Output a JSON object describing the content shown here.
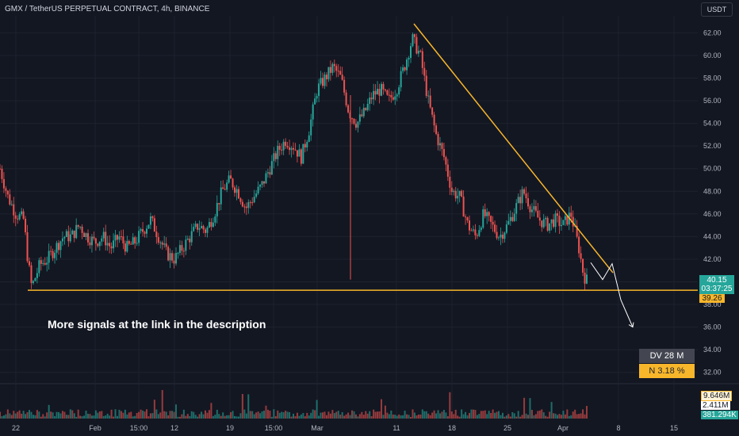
{
  "header": {
    "title": "GMX / TetherUS PERPETUAL CONTRACT, 4h, BINANCE",
    "currency": "USDT"
  },
  "price_labels": {
    "last_price": "40.15",
    "countdown": "03:37:25",
    "level": "39.26"
  },
  "annotation": "More signals at the link in the description",
  "indicator_boxes": {
    "dv": "DV 28 M",
    "n": "N 3.18 %"
  },
  "volume_labels": [
    "9.646M",
    "2.411M",
    "381.294K"
  ],
  "colors": {
    "background": "#131722",
    "up_candle": "#26a69a",
    "down_candle": "#ef5350",
    "trendline": "#f8b62b",
    "support": "#f8b62b",
    "projection": "#ffffff"
  },
  "chart_data": {
    "type": "candlestick",
    "title": "GMX / TetherUS PERPETUAL CONTRACT, 4h, BINANCE",
    "y_ticks": [
      "62.00",
      "60.00",
      "58.00",
      "56.00",
      "54.00",
      "52.00",
      "50.00",
      "48.00",
      "46.00",
      "44.00",
      "42.00",
      "40.00",
      "38.00",
      "36.00",
      "34.00",
      "32.00"
    ],
    "ylim": [
      31,
      63.5
    ],
    "x_ticks": [
      {
        "label": "22",
        "x": 0.0
      },
      {
        "label": "Feb",
        "x": 10.0
      },
      {
        "label": "15:00",
        "x": 15.5
      },
      {
        "label": "12",
        "x": 20.0
      },
      {
        "label": "19",
        "x": 27.0
      },
      {
        "label": "15:00",
        "x": 32.5
      },
      {
        "label": "Mar",
        "x": 38.0
      },
      {
        "label": "11",
        "x": 48.0
      },
      {
        "label": "18",
        "x": 55.0
      },
      {
        "label": "25",
        "x": 62.0
      },
      {
        "label": "Apr",
        "x": 69.0
      },
      {
        "label": "8",
        "x": 76.0
      },
      {
        "label": "15",
        "x": 83.0
      }
    ],
    "xlim": [
      -2,
      86
    ],
    "series": [
      {
        "x": -2,
        "y": 50.0
      },
      {
        "x": -1,
        "y": 47.5
      },
      {
        "x": 0,
        "y": 46.0
      },
      {
        "x": 1,
        "y": 45.5
      },
      {
        "x": 1.5,
        "y": 42.0
      },
      {
        "x": 2,
        "y": 39.5
      },
      {
        "x": 3,
        "y": 41.5
      },
      {
        "x": 4,
        "y": 42.0
      },
      {
        "x": 5,
        "y": 43.0
      },
      {
        "x": 6,
        "y": 44.0
      },
      {
        "x": 7,
        "y": 44.0
      },
      {
        "x": 8,
        "y": 45.0
      },
      {
        "x": 9,
        "y": 44.0
      },
      {
        "x": 10,
        "y": 43.5
      },
      {
        "x": 11,
        "y": 44.0
      },
      {
        "x": 12,
        "y": 43.0
      },
      {
        "x": 13,
        "y": 44.0
      },
      {
        "x": 14,
        "y": 43.0
      },
      {
        "x": 15,
        "y": 43.5
      },
      {
        "x": 16,
        "y": 44.5
      },
      {
        "x": 17,
        "y": 45.5
      },
      {
        "x": 18,
        "y": 44.0
      },
      {
        "x": 19,
        "y": 42.5
      },
      {
        "x": 20,
        "y": 42.0
      },
      {
        "x": 21,
        "y": 43.0
      },
      {
        "x": 22,
        "y": 44.0
      },
      {
        "x": 23,
        "y": 45.0
      },
      {
        "x": 24,
        "y": 44.5
      },
      {
        "x": 25,
        "y": 46.0
      },
      {
        "x": 26,
        "y": 48.0
      },
      {
        "x": 27,
        "y": 49.0
      },
      {
        "x": 28,
        "y": 48.0
      },
      {
        "x": 29,
        "y": 46.5
      },
      {
        "x": 30,
        "y": 47.5
      },
      {
        "x": 31,
        "y": 48.5
      },
      {
        "x": 32,
        "y": 50.0
      },
      {
        "x": 33,
        "y": 51.5
      },
      {
        "x": 34,
        "y": 52.5
      },
      {
        "x": 35,
        "y": 52.0
      },
      {
        "x": 36,
        "y": 51.0
      },
      {
        "x": 37,
        "y": 53.5
      },
      {
        "x": 38,
        "y": 57.0
      },
      {
        "x": 39,
        "y": 58.0
      },
      {
        "x": 40,
        "y": 59.0
      },
      {
        "x": 41,
        "y": 58.0
      },
      {
        "x": 42,
        "y": 55.0
      },
      {
        "x": 43,
        "y": 54.0
      },
      {
        "x": 44,
        "y": 55.0
      },
      {
        "x": 45,
        "y": 56.5
      },
      {
        "x": 46,
        "y": 57.0
      },
      {
        "x": 47,
        "y": 56.0
      },
      {
        "x": 48,
        "y": 57.0
      },
      {
        "x": 49,
        "y": 59.0
      },
      {
        "x": 50,
        "y": 61.5
      },
      {
        "x": 51,
        "y": 60.0
      },
      {
        "x": 52,
        "y": 56.0
      },
      {
        "x": 53,
        "y": 53.0
      },
      {
        "x": 54,
        "y": 51.0
      },
      {
        "x": 55,
        "y": 48.0
      },
      {
        "x": 56,
        "y": 47.5
      },
      {
        "x": 57,
        "y": 45.0
      },
      {
        "x": 58,
        "y": 44.0
      },
      {
        "x": 59,
        "y": 46.0
      },
      {
        "x": 60,
        "y": 45.0
      },
      {
        "x": 61,
        "y": 44.0
      },
      {
        "x": 62,
        "y": 45.0
      },
      {
        "x": 63,
        "y": 46.5
      },
      {
        "x": 64,
        "y": 48.0
      },
      {
        "x": 65,
        "y": 46.5
      },
      {
        "x": 66,
        "y": 45.5
      },
      {
        "x": 67,
        "y": 45.0
      },
      {
        "x": 68,
        "y": 45.5
      },
      {
        "x": 69,
        "y": 45.0
      },
      {
        "x": 70,
        "y": 46.0
      },
      {
        "x": 71,
        "y": 43.0
      },
      {
        "x": 71.6,
        "y": 40.6
      },
      {
        "x": 72,
        "y": 40.15
      }
    ],
    "trendline": {
      "from": {
        "x": 50.2,
        "y": 62.8
      },
      "to": {
        "x": 75.3,
        "y": 40.8
      }
    },
    "support": {
      "y": 39.26,
      "x_from": 1.5,
      "x_to": 86
    },
    "projection": [
      {
        "x": 72.5,
        "y": 41.7
      },
      {
        "x": 74,
        "y": 40.2
      },
      {
        "x": 75.2,
        "y": 41.6
      },
      {
        "x": 76.3,
        "y": 38.4
      },
      {
        "x": 77.8,
        "y": 36.0
      }
    ],
    "grid": true
  }
}
